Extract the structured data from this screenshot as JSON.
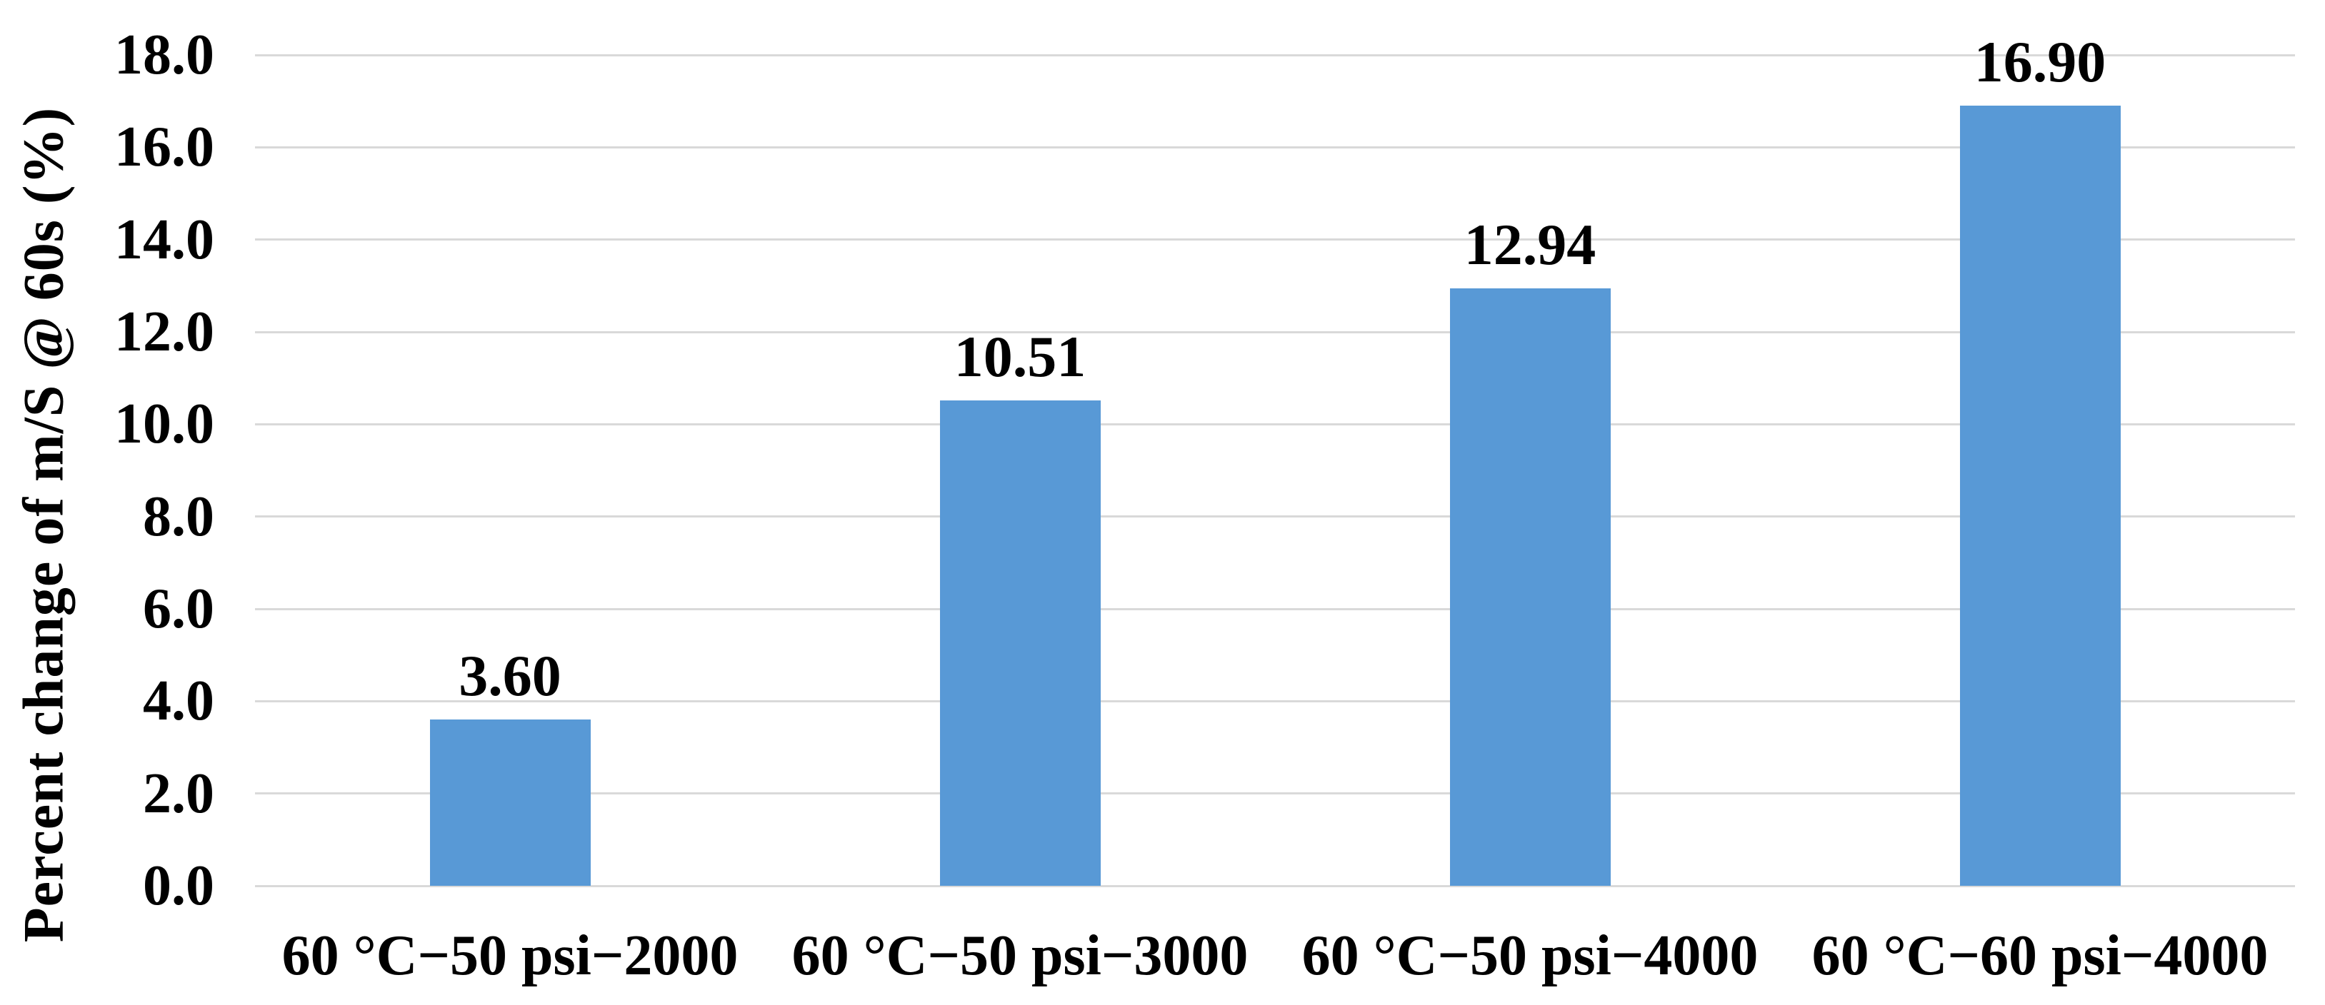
{
  "chart_data": {
    "type": "bar",
    "title": "",
    "ylabel": "Percent change of m/S @ 60s (%)",
    "xlabel": "",
    "categories": [
      "60 °C−50 psi−2000",
      "60 °C−50 psi−3000",
      "60 °C−50 psi−4000",
      "60 °C−60 psi−4000"
    ],
    "values": [
      3.6,
      10.51,
      12.94,
      16.9
    ],
    "value_labels": [
      "3.60",
      "10.51",
      "12.94",
      "16.90"
    ],
    "ylim": [
      0,
      18
    ],
    "ytick_step": 2,
    "ytick_labels": [
      "0.0",
      "2.0",
      "4.0",
      "6.0",
      "8.0",
      "10.0",
      "12.0",
      "14.0",
      "16.0",
      "18.0"
    ],
    "grid": true,
    "legend": false,
    "bar_color": "#5899D6",
    "gridline_color": "#D9D9D9",
    "text_color": "#000000"
  }
}
